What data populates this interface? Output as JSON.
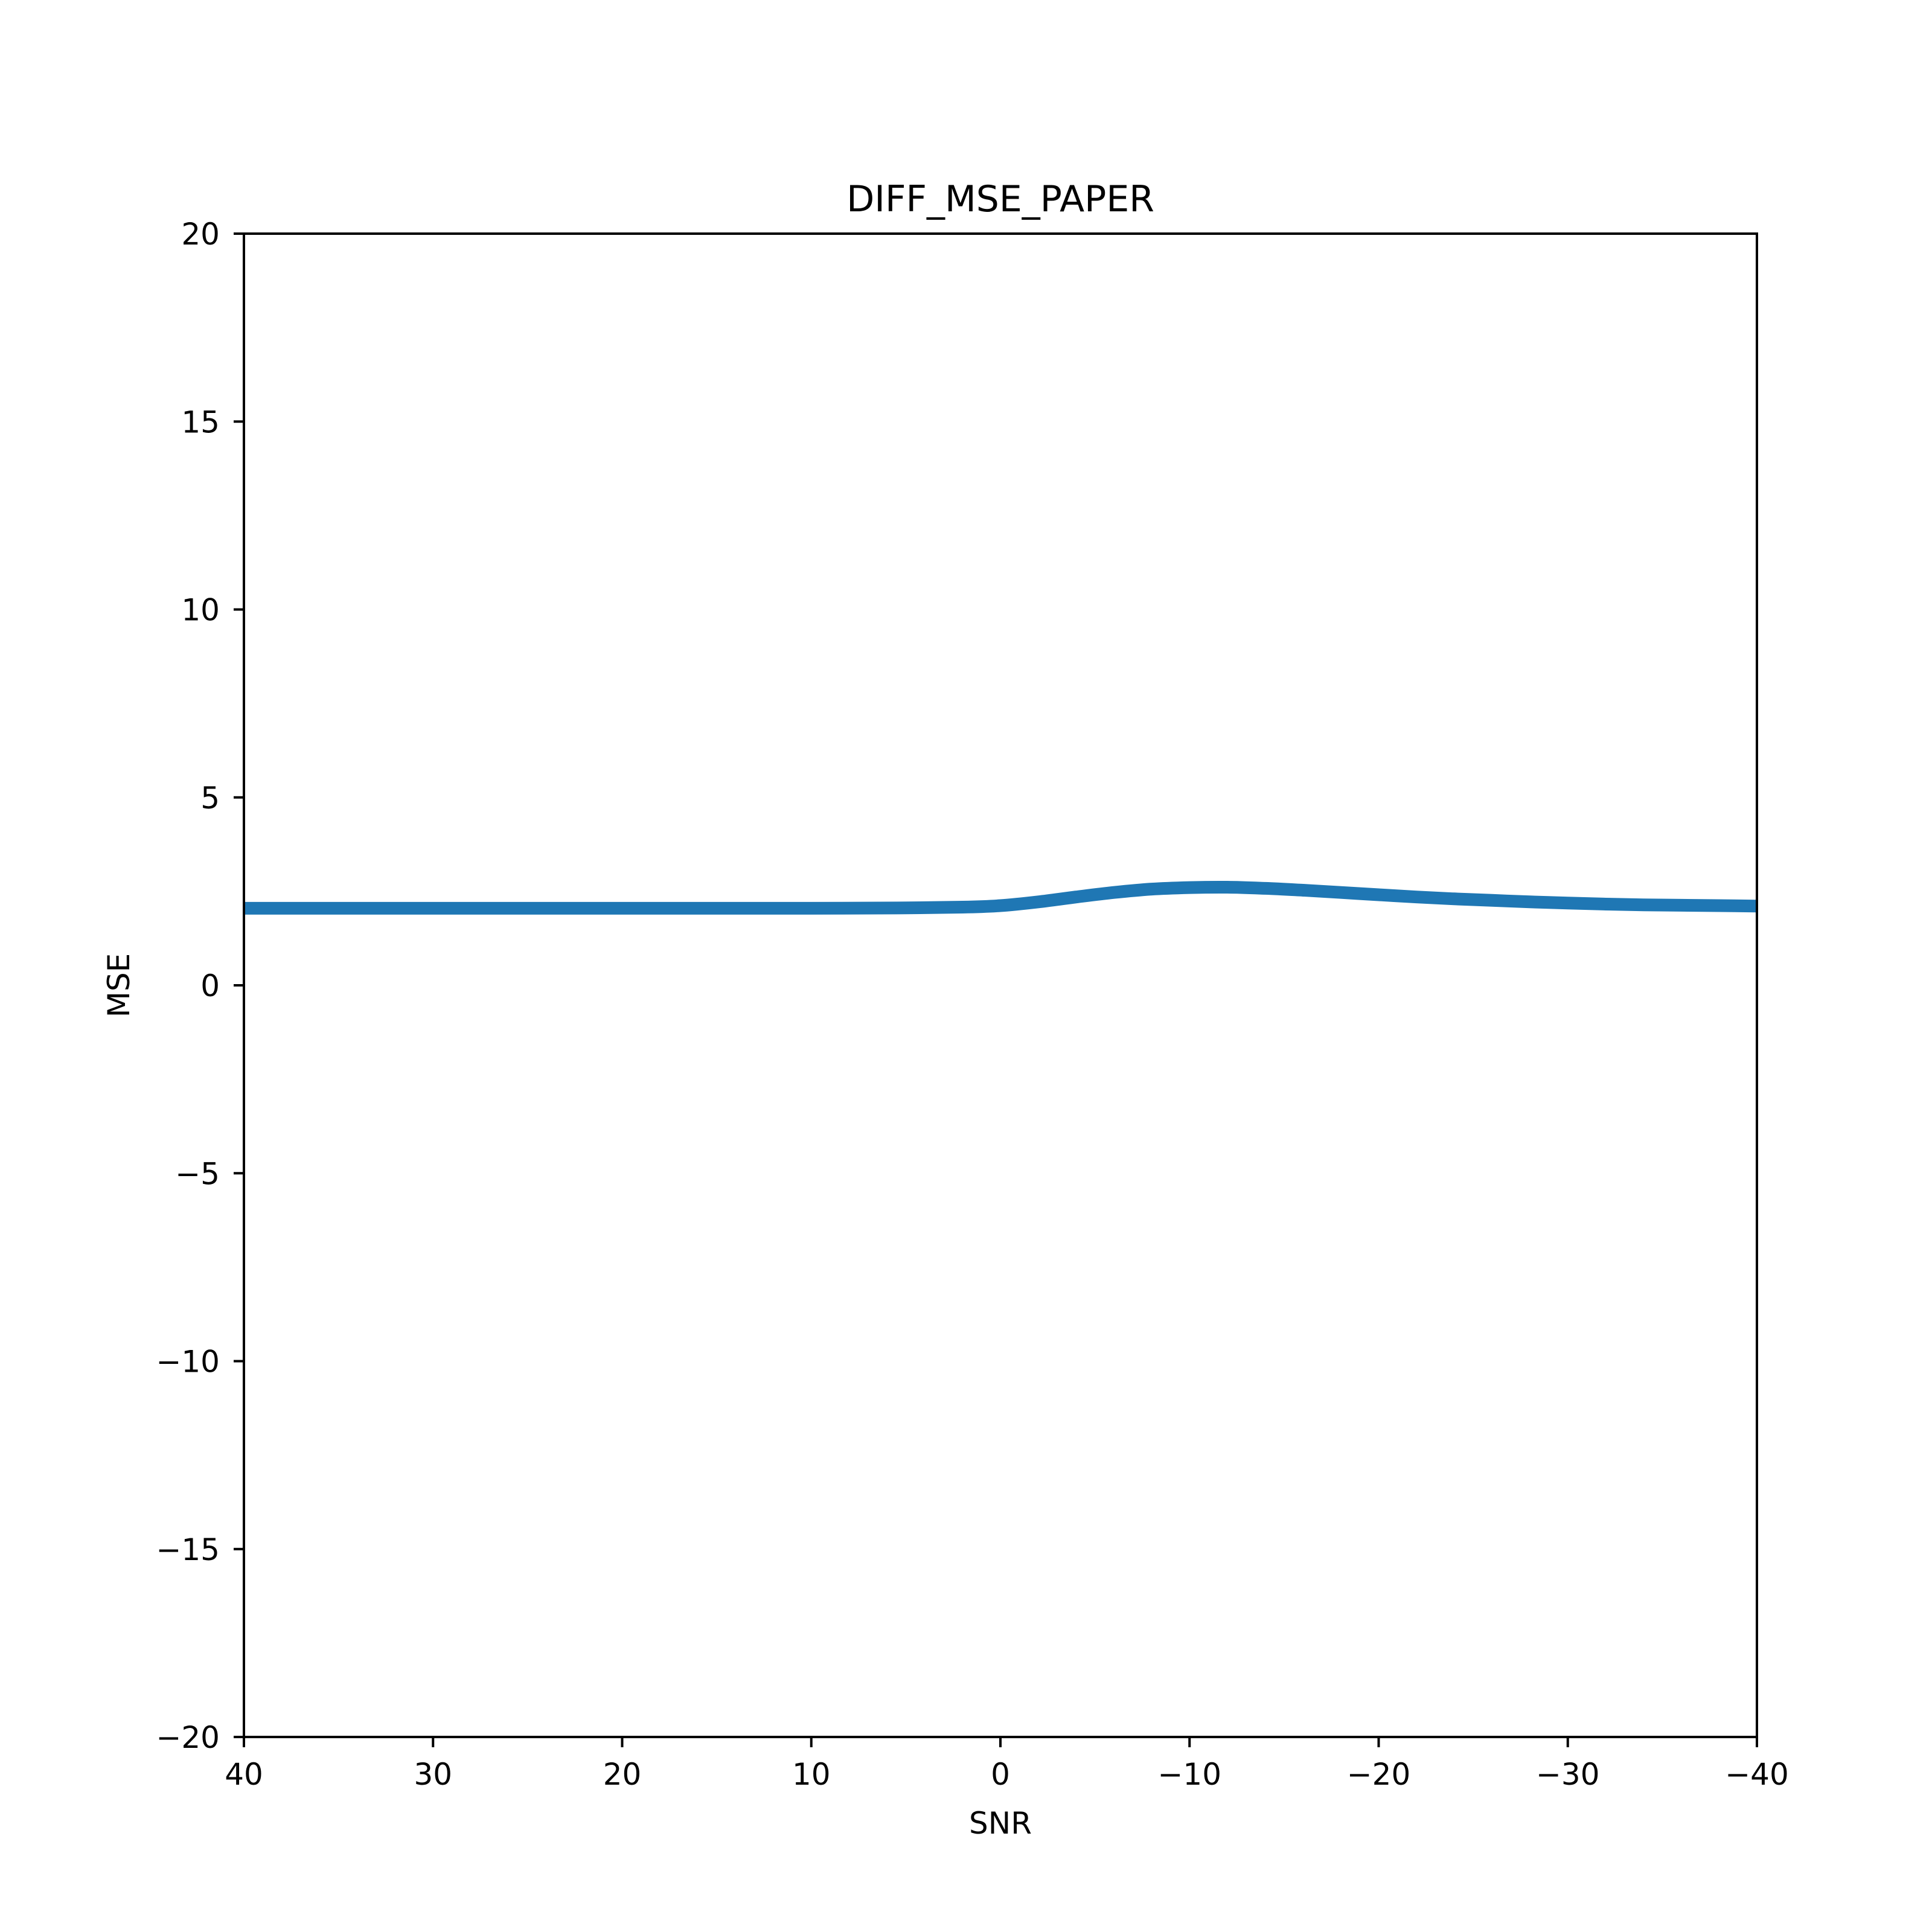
{
  "chart_data": {
    "type": "line",
    "title": "DIFF_MSE_PAPER",
    "xlabel": "SNR",
    "ylabel": "MSE",
    "xlim": [
      40,
      -40
    ],
    "ylim": [
      -20,
      20
    ],
    "x_reversed": true,
    "grid": false,
    "x_ticks": [
      40,
      30,
      20,
      10,
      0,
      -10,
      -20,
      -30,
      -40
    ],
    "y_ticks": [
      20,
      15,
      10,
      5,
      0,
      -5,
      -10,
      -15,
      -20
    ],
    "x_tick_labels": [
      "40",
      "30",
      "20",
      "10",
      "0",
      "−10",
      "−20",
      "−30",
      "−40"
    ],
    "y_tick_labels": [
      "20",
      "15",
      "10",
      "5",
      "0",
      "−5",
      "−10",
      "−15",
      "−20"
    ],
    "series": [
      {
        "color": "#1f77b4",
        "x": [
          40,
          30,
          20,
          10,
          5,
          2,
          0,
          -2,
          -4,
          -6,
          -8,
          -10,
          -12,
          -14,
          -16,
          -18,
          -20,
          -22,
          -24,
          -26,
          -28,
          -30,
          -32,
          -34,
          -36,
          -38,
          -40
        ],
        "y": [
          2.05,
          2.05,
          2.05,
          2.05,
          2.06,
          2.08,
          2.12,
          2.22,
          2.35,
          2.47,
          2.56,
          2.6,
          2.61,
          2.58,
          2.53,
          2.47,
          2.41,
          2.35,
          2.3,
          2.26,
          2.22,
          2.19,
          2.16,
          2.14,
          2.13,
          2.12,
          2.11
        ]
      }
    ]
  }
}
